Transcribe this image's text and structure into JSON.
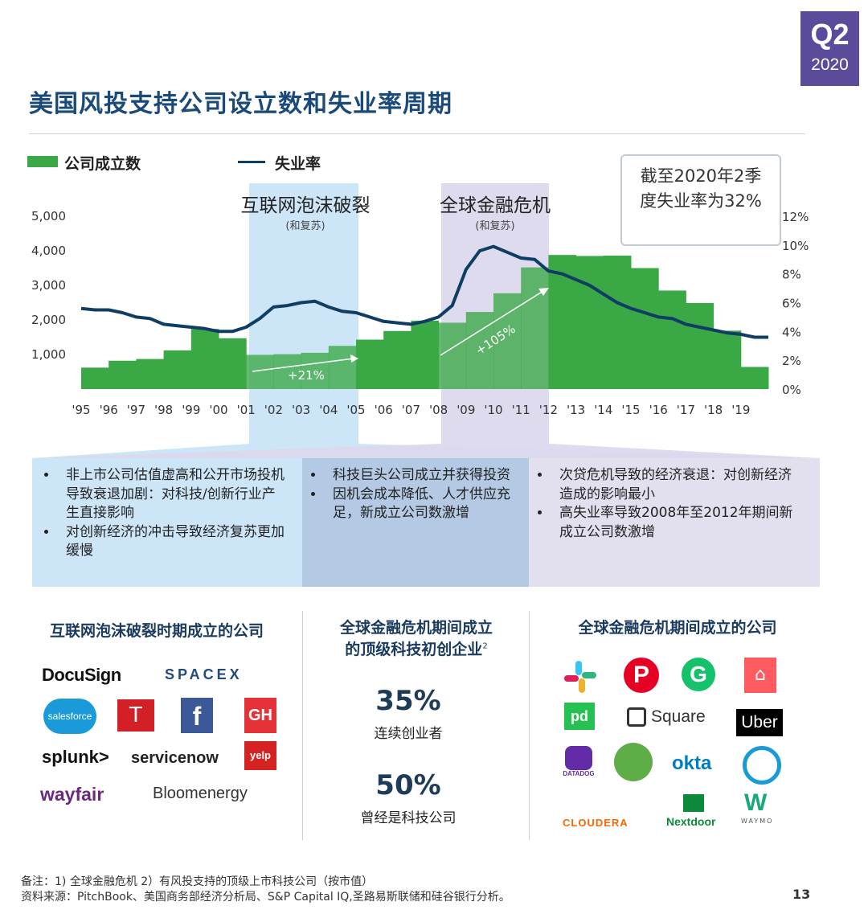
{
  "badge": {
    "quarter": "Q2",
    "year": "2020"
  },
  "title": "美国风投支持公司设立数和失业率周期",
  "legend": {
    "bars": "公司成立数",
    "line": "失业率"
  },
  "callout": {
    "line1": "截至2020年2季",
    "line2": "度失业率为32%"
  },
  "periods": [
    {
      "title": "互联网泡沫破裂",
      "subtitle": "(和复苏)"
    },
    {
      "title": "全球金融危机",
      "subtitle": "(和复苏)"
    }
  ],
  "chart_data": {
    "type": "bar",
    "categories": [
      "'95",
      "'96",
      "'97",
      "'98",
      "'99",
      "'00",
      "'01",
      "'02",
      "'03",
      "'04",
      "'05",
      "'06",
      "'07",
      "'08",
      "'09",
      "'10",
      "'11",
      "'12",
      "'13",
      "'14",
      "'15",
      "'16",
      "'17",
      "'18",
      "'19"
    ],
    "series": [
      {
        "name": "公司成立数",
        "type": "bar",
        "axis": "left",
        "values": [
          620,
          820,
          870,
          1120,
          1740,
          1470,
          990,
          1010,
          1050,
          1250,
          1430,
          1680,
          1980,
          1920,
          2230,
          2770,
          3520,
          3880,
          3850,
          3860,
          3500,
          2850,
          2490,
          1690,
          640
        ]
      },
      {
        "name": "失业率",
        "type": "line",
        "axis": "right",
        "x": [
          1995,
          1995.5,
          1996,
          1996.5,
          1997,
          1997.5,
          1998,
          1998.5,
          1999,
          1999.5,
          2000,
          2000.5,
          2001,
          2001.5,
          2002,
          2002.5,
          2003,
          2003.5,
          2004,
          2004.5,
          2005,
          2005.5,
          2006,
          2006.5,
          2007,
          2007.5,
          2008,
          2008.5,
          2009,
          2009.5,
          2010,
          2010.5,
          2011,
          2011.5,
          2012,
          2012.5,
          2013,
          2013.5,
          2014,
          2014.5,
          2015,
          2015.5,
          2016,
          2016.5,
          2017,
          2017.5,
          2018,
          2018.5,
          2019,
          2019.5,
          2020
        ],
        "values": [
          5.6,
          5.5,
          5.5,
          5.3,
          5.0,
          4.9,
          4.5,
          4.4,
          4.3,
          4.2,
          4.0,
          4.0,
          4.3,
          4.9,
          5.7,
          5.8,
          6.0,
          6.1,
          5.7,
          5.4,
          5.3,
          5.0,
          4.7,
          4.6,
          4.5,
          4.7,
          5.0,
          5.8,
          8.3,
          9.6,
          9.9,
          9.5,
          9.1,
          9.0,
          8.2,
          8.0,
          7.6,
          7.2,
          6.6,
          6.0,
          5.6,
          5.3,
          5.0,
          4.9,
          4.5,
          4.3,
          4.1,
          3.9,
          3.8,
          3.6,
          3.6
        ]
      }
    ],
    "yleft": {
      "ticks": [
        "5,000",
        "4,000",
        "3,000",
        "2,000",
        "1,000"
      ],
      "range": [
        0,
        5000
      ]
    },
    "yright": {
      "ticks": [
        "12%",
        "10%",
        "8%",
        "6%",
        "4%",
        "2%",
        "0%"
      ],
      "range": [
        0,
        12
      ]
    },
    "annotations": [
      "+21%",
      "+105%"
    ]
  },
  "bullets": {
    "col1": [
      "非上市公司估值虚高和公开市场投机导致衰退加剧：对科技/创新行业产生直接影响",
      "对创新经济的冲击导致经济复苏更加缓慢"
    ],
    "col2": [
      "科技巨头公司成立并获得投资",
      "因机会成本降低、人才供应充足，新成立公司数激增"
    ],
    "col3": [
      "次贷危机导致的经济衰退：对创新经济造成的影响最小",
      "高失业率导致2008年至2012年期间新成立公司数激增"
    ]
  },
  "section1": {
    "heading": "互联网泡沫破裂时期成立的公司",
    "logos": [
      "DocuSign",
      "SPACEX",
      "salesforce",
      "Tesla",
      "f",
      "GH",
      "splunk>",
      "servicenow",
      "yelp",
      "wayfair",
      "Bloomenergy"
    ]
  },
  "section2": {
    "heading1": "全球金融危机期间成立",
    "heading2": "的顶级科技初创企业",
    "sup": "2",
    "stat1_num": "35%",
    "stat1_lbl": "连续创业者",
    "stat2_num": "50%",
    "stat2_lbl": "曾经是科技公司"
  },
  "section3": {
    "heading": "全球金融危机期间成立的公司",
    "logos": [
      "slack",
      "pinterest",
      "G",
      "airbnb",
      "pd",
      "Square",
      "Uber",
      "DATADOG",
      "surveymonkey",
      "okta",
      "power",
      "CLOUDERA",
      "Nextdoor",
      "WAYMO"
    ]
  },
  "footer": {
    "note": "备注：1) 全球金融危机 2）有风投支持的顶级上市科技公司（按市值）",
    "source": "资料来源：PitchBook、美国商务部经济分析局、S&P Capital IQ,圣路易斯联储和硅谷银行分析。",
    "page": "13"
  },
  "colors": {
    "bar": "#3aa845",
    "line": "#0f3d63",
    "band1": "#cce6f7",
    "band2": "#dcd7ec",
    "accent": "#5c4a9a"
  }
}
